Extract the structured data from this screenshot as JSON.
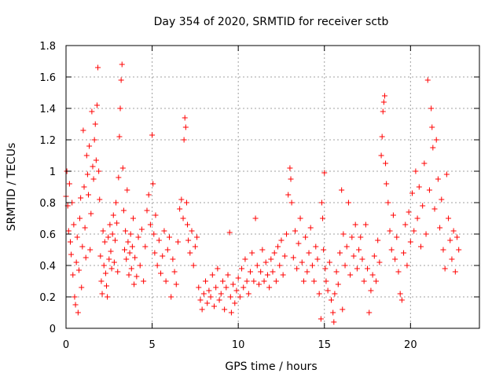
{
  "chart_data": {
    "type": "scatter",
    "title": "Day 354 of 2020, SRMTID for receiver sctb",
    "xlabel": "GPS time / hours",
    "ylabel": "SRMTID / TECUs",
    "xlim": [
      0,
      24
    ],
    "ylim": [
      0,
      1.8
    ],
    "xticks": [
      0,
      5,
      10,
      15,
      20
    ],
    "xtick_labels": [
      "0",
      "5",
      "10",
      "15",
      "20"
    ],
    "yticks": [
      0,
      0.2,
      0.4,
      0.6,
      0.8,
      1,
      1.2,
      1.4,
      1.6,
      1.8
    ],
    "ytick_labels": [
      "0",
      "0.2",
      "0.4",
      "0.6",
      "0.8",
      "1",
      "1.2",
      "1.4",
      "1.6",
      "1.8"
    ],
    "grid": true,
    "marker": "+",
    "marker_color": "#ff0000",
    "series": [
      {
        "name": "SRMTID",
        "points": [
          [
            0.0,
            0.84
          ],
          [
            0.05,
            1.0
          ],
          [
            0.1,
            0.78
          ],
          [
            0.15,
            0.62
          ],
          [
            0.2,
            0.92
          ],
          [
            0.25,
            0.55
          ],
          [
            0.3,
            0.47
          ],
          [
            0.35,
            0.8
          ],
          [
            0.4,
            0.34
          ],
          [
            0.45,
            0.66
          ],
          [
            0.5,
            0.2
          ],
          [
            0.55,
            0.15
          ],
          [
            0.6,
            0.42
          ],
          [
            0.65,
            0.58
          ],
          [
            0.7,
            0.1
          ],
          [
            0.75,
            0.37
          ],
          [
            0.8,
            0.7
          ],
          [
            0.85,
            0.83
          ],
          [
            0.9,
            0.26
          ],
          [
            0.95,
            0.52
          ],
          [
            1.0,
            1.26
          ],
          [
            1.05,
            0.9
          ],
          [
            1.1,
            0.64
          ],
          [
            1.15,
            0.45
          ],
          [
            1.2,
            1.1
          ],
          [
            1.25,
            0.98
          ],
          [
            1.3,
            0.85
          ],
          [
            1.35,
            1.16
          ],
          [
            1.4,
            0.5
          ],
          [
            1.45,
            0.73
          ],
          [
            1.5,
            1.38
          ],
          [
            1.55,
            1.03
          ],
          [
            1.6,
            0.95
          ],
          [
            1.65,
            1.2
          ],
          [
            1.7,
            1.3
          ],
          [
            1.75,
            1.07
          ],
          [
            1.8,
            1.42
          ],
          [
            1.85,
            1.66
          ],
          [
            1.9,
            1.0
          ],
          [
            1.95,
            0.82
          ],
          [
            2.0,
            0.46
          ],
          [
            2.05,
            0.3
          ],
          [
            2.1,
            0.22
          ],
          [
            2.15,
            0.62
          ],
          [
            2.2,
            0.4
          ],
          [
            2.25,
            0.55
          ],
          [
            2.3,
            0.35
          ],
          [
            2.35,
            0.27
          ],
          [
            2.4,
            0.2
          ],
          [
            2.45,
            0.58
          ],
          [
            2.5,
            0.44
          ],
          [
            2.55,
            0.66
          ],
          [
            2.6,
            0.49
          ],
          [
            2.65,
            0.38
          ],
          [
            2.7,
            0.6
          ],
          [
            2.75,
            0.72
          ],
          [
            2.8,
            0.42
          ],
          [
            2.85,
            0.56
          ],
          [
            2.9,
            0.8
          ],
          [
            2.95,
            0.67
          ],
          [
            3.0,
            0.36
          ],
          [
            3.05,
            0.96
          ],
          [
            3.1,
            1.22
          ],
          [
            3.15,
            1.4
          ],
          [
            3.2,
            1.58
          ],
          [
            3.25,
            1.68
          ],
          [
            3.3,
            1.02
          ],
          [
            3.35,
            0.75
          ],
          [
            3.4,
            0.5
          ],
          [
            3.45,
            0.62
          ],
          [
            3.5,
            0.44
          ],
          [
            3.55,
            0.88
          ],
          [
            3.6,
            0.55
          ],
          [
            3.65,
            0.34
          ],
          [
            3.7,
            0.48
          ],
          [
            3.75,
            0.6
          ],
          [
            3.8,
            0.38
          ],
          [
            3.85,
            0.52
          ],
          [
            3.9,
            0.7
          ],
          [
            3.95,
            0.28
          ],
          [
            4.0,
            0.45
          ],
          [
            4.1,
            0.33
          ],
          [
            4.2,
            0.58
          ],
          [
            4.3,
            0.4
          ],
          [
            4.4,
            0.63
          ],
          [
            4.5,
            0.3
          ],
          [
            4.6,
            0.52
          ],
          [
            4.7,
            0.75
          ],
          [
            4.8,
            0.85
          ],
          [
            4.9,
            0.66
          ],
          [
            5.0,
            1.23
          ],
          [
            5.05,
            0.92
          ],
          [
            5.1,
            0.6
          ],
          [
            5.15,
            0.48
          ],
          [
            5.2,
            0.72
          ],
          [
            5.3,
            0.4
          ],
          [
            5.4,
            0.56
          ],
          [
            5.5,
            0.35
          ],
          [
            5.6,
            0.46
          ],
          [
            5.7,
            0.62
          ],
          [
            5.8,
            0.3
          ],
          [
            5.9,
            0.5
          ],
          [
            6.0,
            0.58
          ],
          [
            6.1,
            0.2
          ],
          [
            6.2,
            0.44
          ],
          [
            6.3,
            0.36
          ],
          [
            6.4,
            0.28
          ],
          [
            6.5,
            0.55
          ],
          [
            6.6,
            0.76
          ],
          [
            6.7,
            0.82
          ],
          [
            6.8,
            0.7
          ],
          [
            6.85,
            1.2
          ],
          [
            6.9,
            1.34
          ],
          [
            6.95,
            1.28
          ],
          [
            7.0,
            0.8
          ],
          [
            7.05,
            0.66
          ],
          [
            7.1,
            0.56
          ],
          [
            7.2,
            0.48
          ],
          [
            7.3,
            0.62
          ],
          [
            7.4,
            0.4
          ],
          [
            7.5,
            0.52
          ],
          [
            7.6,
            0.58
          ],
          [
            7.7,
            0.26
          ],
          [
            7.8,
            0.18
          ],
          [
            7.9,
            0.12
          ],
          [
            8.0,
            0.22
          ],
          [
            8.1,
            0.3
          ],
          [
            8.2,
            0.16
          ],
          [
            8.3,
            0.24
          ],
          [
            8.4,
            0.2
          ],
          [
            8.5,
            0.34
          ],
          [
            8.6,
            0.14
          ],
          [
            8.7,
            0.26
          ],
          [
            8.8,
            0.38
          ],
          [
            8.9,
            0.18
          ],
          [
            9.0,
            0.22
          ],
          [
            9.1,
            0.3
          ],
          [
            9.2,
            0.12
          ],
          [
            9.3,
            0.26
          ],
          [
            9.4,
            0.34
          ],
          [
            9.5,
            0.61
          ],
          [
            9.55,
            0.2
          ],
          [
            9.6,
            0.1
          ],
          [
            9.7,
            0.28
          ],
          [
            9.8,
            0.16
          ],
          [
            9.9,
            0.24
          ],
          [
            10.0,
            0.32
          ],
          [
            10.1,
            0.2
          ],
          [
            10.2,
            0.38
          ],
          [
            10.3,
            0.26
          ],
          [
            10.4,
            0.44
          ],
          [
            10.5,
            0.3
          ],
          [
            10.6,
            0.22
          ],
          [
            10.7,
            0.36
          ],
          [
            10.8,
            0.48
          ],
          [
            10.9,
            0.3
          ],
          [
            11.0,
            0.7
          ],
          [
            11.1,
            0.4
          ],
          [
            11.2,
            0.28
          ],
          [
            11.3,
            0.36
          ],
          [
            11.4,
            0.5
          ],
          [
            11.5,
            0.3
          ],
          [
            11.6,
            0.42
          ],
          [
            11.7,
            0.34
          ],
          [
            11.8,
            0.26
          ],
          [
            11.9,
            0.44
          ],
          [
            12.0,
            0.36
          ],
          [
            12.1,
            0.48
          ],
          [
            12.2,
            0.3
          ],
          [
            12.3,
            0.52
          ],
          [
            12.4,
            0.4
          ],
          [
            12.5,
            0.56
          ],
          [
            12.6,
            0.34
          ],
          [
            12.7,
            0.46
          ],
          [
            12.8,
            0.6
          ],
          [
            12.9,
            0.85
          ],
          [
            13.0,
            1.02
          ],
          [
            13.05,
            0.95
          ],
          [
            13.1,
            0.8
          ],
          [
            13.2,
            0.45
          ],
          [
            13.3,
            0.62
          ],
          [
            13.4,
            0.38
          ],
          [
            13.5,
            0.54
          ],
          [
            13.6,
            0.7
          ],
          [
            13.7,
            0.42
          ],
          [
            13.8,
            0.3
          ],
          [
            13.9,
            0.58
          ],
          [
            14.0,
            0.36
          ],
          [
            14.1,
            0.48
          ],
          [
            14.2,
            0.64
          ],
          [
            14.3,
            0.4
          ],
          [
            14.4,
            0.3
          ],
          [
            14.5,
            0.52
          ],
          [
            14.6,
            0.44
          ],
          [
            14.7,
            0.22
          ],
          [
            14.8,
            0.06
          ],
          [
            14.85,
            0.8
          ],
          [
            14.9,
            0.7
          ],
          [
            14.95,
            0.5
          ],
          [
            15.0,
            0.99
          ],
          [
            15.05,
            0.38
          ],
          [
            15.1,
            0.3
          ],
          [
            15.2,
            0.24
          ],
          [
            15.3,
            0.42
          ],
          [
            15.4,
            0.18
          ],
          [
            15.5,
            0.1
          ],
          [
            15.55,
            0.04
          ],
          [
            15.6,
            0.22
          ],
          [
            15.7,
            0.36
          ],
          [
            15.8,
            0.28
          ],
          [
            15.9,
            0.48
          ],
          [
            16.0,
            0.88
          ],
          [
            16.05,
            0.12
          ],
          [
            16.1,
            0.6
          ],
          [
            16.2,
            0.4
          ],
          [
            16.3,
            0.52
          ],
          [
            16.4,
            0.8
          ],
          [
            16.5,
            0.34
          ],
          [
            16.6,
            0.58
          ],
          [
            16.7,
            0.46
          ],
          [
            16.8,
            0.66
          ],
          [
            16.9,
            0.38
          ],
          [
            17.0,
            0.5
          ],
          [
            17.1,
            0.58
          ],
          [
            17.2,
            0.44
          ],
          [
            17.3,
            0.3
          ],
          [
            17.4,
            0.66
          ],
          [
            17.5,
            0.38
          ],
          [
            17.6,
            0.1
          ],
          [
            17.7,
            0.24
          ],
          [
            17.8,
            0.34
          ],
          [
            17.9,
            0.46
          ],
          [
            18.0,
            0.3
          ],
          [
            18.1,
            0.56
          ],
          [
            18.2,
            0.42
          ],
          [
            18.3,
            1.1
          ],
          [
            18.35,
            1.22
          ],
          [
            18.4,
            1.38
          ],
          [
            18.45,
            1.44
          ],
          [
            18.5,
            1.48
          ],
          [
            18.55,
            1.05
          ],
          [
            18.6,
            0.92
          ],
          [
            18.7,
            0.8
          ],
          [
            18.8,
            0.62
          ],
          [
            18.9,
            0.5
          ],
          [
            19.0,
            0.72
          ],
          [
            19.1,
            0.44
          ],
          [
            19.2,
            0.58
          ],
          [
            19.3,
            0.36
          ],
          [
            19.4,
            0.22
          ],
          [
            19.5,
            0.18
          ],
          [
            19.6,
            0.48
          ],
          [
            19.7,
            0.66
          ],
          [
            19.8,
            0.4
          ],
          [
            19.9,
            0.74
          ],
          [
            20.0,
            0.55
          ],
          [
            20.1,
            0.86
          ],
          [
            20.2,
            0.62
          ],
          [
            20.3,
            1.0
          ],
          [
            20.4,
            0.7
          ],
          [
            20.5,
            0.9
          ],
          [
            20.6,
            0.52
          ],
          [
            20.7,
            0.78
          ],
          [
            20.8,
            1.05
          ],
          [
            20.9,
            0.6
          ],
          [
            21.0,
            1.58
          ],
          [
            21.1,
            0.88
          ],
          [
            21.2,
            1.4
          ],
          [
            21.25,
            1.28
          ],
          [
            21.3,
            1.15
          ],
          [
            21.4,
            0.76
          ],
          [
            21.5,
            1.2
          ],
          [
            21.6,
            0.95
          ],
          [
            21.7,
            0.64
          ],
          [
            21.8,
            0.82
          ],
          [
            21.9,
            0.5
          ],
          [
            22.0,
            0.38
          ],
          [
            22.1,
            0.98
          ],
          [
            22.2,
            0.7
          ],
          [
            22.3,
            0.56
          ],
          [
            22.4,
            0.44
          ],
          [
            22.5,
            0.62
          ],
          [
            22.6,
            0.36
          ],
          [
            22.7,
            0.58
          ],
          [
            22.8,
            0.5
          ]
        ]
      }
    ]
  }
}
